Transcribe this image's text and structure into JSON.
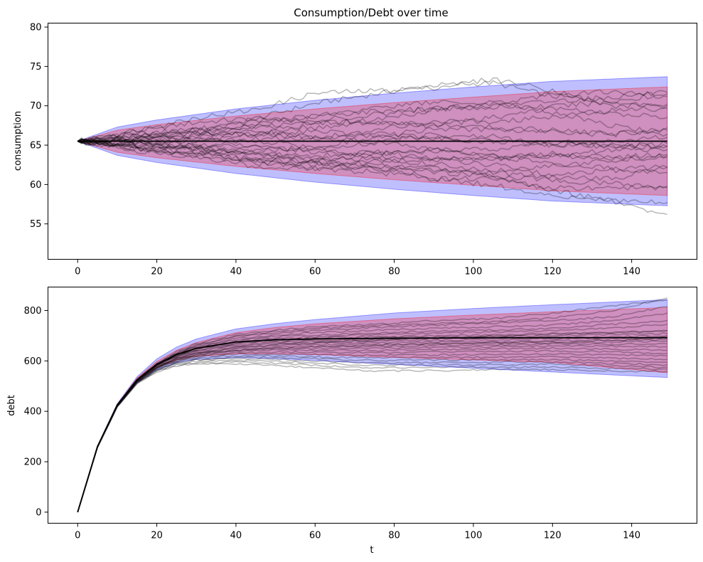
{
  "chart_data": [
    {
      "type": "line",
      "title": "Consumption/Debt over time",
      "xlabel": "",
      "ylabel": "consumption",
      "xlim": [
        -7.5,
        156.5
      ],
      "ylim": [
        50.5,
        80.5
      ],
      "xticks": [
        0,
        20,
        40,
        60,
        80,
        100,
        120,
        140
      ],
      "xtick_labels": [
        "0",
        "20",
        "40",
        "60",
        "80",
        "100",
        "120",
        "140"
      ],
      "yticks": [
        55,
        60,
        65,
        70,
        75,
        80
      ],
      "ytick_labels": [
        "55",
        "60",
        "65",
        "70",
        "75",
        "80"
      ],
      "grid": false,
      "bands": [
        {
          "kind": "population",
          "color": "#0000ff",
          "opacity": 0.25,
          "x": [
            0,
            10,
            20,
            40,
            60,
            80,
            100,
            120,
            149
          ],
          "lower": [
            65.5,
            63.7,
            62.8,
            61.4,
            60.3,
            59.4,
            58.6,
            57.9,
            57.3
          ],
          "upper": [
            65.5,
            67.3,
            68.2,
            69.6,
            70.7,
            71.6,
            72.4,
            73.1,
            73.7
          ]
        },
        {
          "kind": "mid",
          "color": "#ff0000",
          "opacity": 0.25,
          "x": [
            0,
            10,
            20,
            40,
            60,
            80,
            100,
            120,
            149
          ],
          "lower": [
            65.5,
            64.1,
            63.4,
            62.3,
            61.4,
            60.6,
            59.9,
            59.2,
            58.6
          ],
          "upper": [
            65.5,
            66.9,
            67.6,
            68.7,
            69.6,
            70.4,
            71.1,
            71.8,
            72.4
          ]
        }
      ],
      "mean_line": {
        "x": [
          0,
          149
        ],
        "y": [
          65.5,
          65.5
        ],
        "color": "#000000"
      },
      "sample_paths": {
        "count": 25,
        "color": "#000000",
        "opacity": 0.28,
        "x": [
          0,
          15,
          30,
          45,
          60,
          75,
          90,
          105,
          120,
          135,
          149
        ],
        "paths": [
          [
            65.5,
            66.8,
            67.9,
            68.4,
            70.3,
            71.5,
            72.6,
            72.9,
            71.2,
            70.6,
            71.5
          ],
          [
            65.5,
            66.9,
            68.5,
            69.5,
            71.6,
            71.9,
            72.3,
            73.4,
            72.0,
            69.9,
            70.2
          ],
          [
            65.5,
            66.5,
            67.0,
            68.0,
            68.7,
            69.3,
            69.6,
            69.9,
            70.6,
            71.1,
            71.7
          ],
          [
            65.5,
            66.1,
            66.5,
            66.3,
            67.8,
            68.2,
            69.5,
            69.9,
            69.9,
            70.5,
            70.0
          ],
          [
            65.5,
            65.8,
            67.0,
            67.3,
            68.0,
            67.9,
            67.6,
            67.2,
            66.8,
            66.3,
            67.2
          ],
          [
            65.5,
            66.2,
            66.6,
            67.4,
            67.2,
            67.9,
            67.4,
            68.5,
            69.7,
            69.0,
            68.5
          ],
          [
            65.5,
            65.6,
            66.4,
            66.3,
            66.8,
            66.0,
            67.1,
            66.9,
            67.0,
            66.5,
            66.9
          ],
          [
            65.5,
            66.0,
            66.0,
            66.5,
            65.8,
            66.6,
            65.9,
            65.4,
            65.6,
            64.8,
            65.2
          ],
          [
            65.5,
            65.5,
            64.8,
            64.2,
            64.8,
            66.1,
            65.8,
            65.5,
            65.0,
            65.1,
            64.9
          ],
          [
            65.5,
            65.0,
            65.6,
            65.8,
            66.0,
            65.4,
            64.5,
            64.5,
            65.4,
            64.7,
            64.8
          ],
          [
            65.5,
            64.9,
            64.7,
            64.9,
            64.1,
            63.9,
            64.2,
            63.7,
            63.6,
            63.5,
            63.8
          ],
          [
            65.5,
            65.4,
            64.6,
            63.8,
            63.6,
            64.1,
            63.4,
            63.2,
            63.7,
            64.4,
            64.4
          ],
          [
            65.5,
            65.1,
            64.7,
            63.5,
            63.2,
            63.3,
            62.6,
            61.8,
            62.4,
            63.1,
            63.4
          ],
          [
            65.5,
            64.7,
            63.7,
            63.1,
            62.6,
            62.9,
            63.3,
            62.5,
            61.2,
            61.8,
            61.5
          ],
          [
            65.5,
            64.9,
            64.1,
            62.9,
            62.0,
            62.3,
            61.9,
            61.5,
            60.9,
            60.7,
            62.2
          ],
          [
            65.5,
            64.6,
            63.9,
            64.2,
            63.1,
            62.4,
            62.0,
            61.1,
            60.6,
            60.1,
            59.8
          ],
          [
            65.5,
            64.5,
            63.4,
            62.3,
            62.0,
            61.6,
            60.7,
            60.8,
            59.6,
            59.5,
            59.6
          ],
          [
            65.5,
            64.6,
            64.4,
            64.0,
            62.8,
            62.1,
            60.8,
            59.9,
            58.6,
            58.1,
            57.7
          ],
          [
            65.5,
            64.2,
            63.9,
            62.7,
            62.6,
            62.0,
            61.6,
            61.1,
            59.3,
            57.9,
            56.2
          ],
          [
            65.5,
            65.8,
            66.2,
            67.7,
            68.7,
            69.8,
            70.5,
            70.3,
            69.2,
            67.5,
            66.4
          ],
          [
            65.5,
            66.4,
            66.9,
            68.3,
            68.1,
            68.9,
            69.6,
            70.4,
            71.3,
            71.8,
            71.2
          ],
          [
            65.5,
            65.4,
            65.6,
            66.8,
            65.9,
            66.9,
            67.9,
            68.0,
            68.6,
            69.4,
            69.7
          ],
          [
            65.5,
            65.5,
            66.0,
            64.7,
            64.3,
            65.3,
            66.3,
            66.1,
            65.0,
            65.6,
            66.0
          ],
          [
            65.5,
            65.0,
            64.4,
            63.1,
            62.9,
            63.9,
            64.4,
            63.6,
            62.7,
            62.0,
            62.2
          ],
          [
            65.5,
            65.9,
            64.9,
            65.6,
            64.7,
            63.4,
            63.2,
            63.4,
            63.9,
            63.1,
            63.7
          ]
        ]
      }
    },
    {
      "type": "line",
      "title": "",
      "xlabel": "t",
      "ylabel": "debt",
      "xlim": [
        -7.5,
        156.5
      ],
      "ylim": [
        -44,
        893
      ],
      "xticks": [
        0,
        20,
        40,
        60,
        80,
        100,
        120,
        140
      ],
      "xtick_labels": [
        "0",
        "20",
        "40",
        "60",
        "80",
        "100",
        "120",
        "140"
      ],
      "yticks": [
        0,
        200,
        400,
        600,
        800
      ],
      "ytick_labels": [
        "0",
        "200",
        "400",
        "600",
        "800"
      ],
      "grid": false,
      "bands": [
        {
          "kind": "population",
          "color": "#0000ff",
          "opacity": 0.25,
          "x": [
            0,
            5,
            10,
            15,
            20,
            25,
            30,
            40,
            50,
            60,
            80,
            100,
            120,
            149
          ],
          "lower": [
            0,
            258,
            420,
            513,
            565,
            593,
            606,
            613,
            609,
            602,
            586,
            571,
            556,
            534
          ],
          "upper": [
            0,
            263,
            430,
            537,
            608,
            655,
            687,
            727,
            748,
            764,
            790,
            808,
            823,
            843
          ]
        },
        {
          "kind": "mid",
          "color": "#ff0000",
          "opacity": 0.25,
          "x": [
            0,
            5,
            10,
            15,
            20,
            25,
            30,
            40,
            50,
            60,
            80,
            100,
            120,
            149
          ],
          "lower": [
            0,
            259,
            422,
            518,
            573,
            603,
            618,
            628,
            628,
            625,
            614,
            604,
            594,
            553
          ],
          "upper": [
            0,
            262,
            428,
            532,
            598,
            642,
            673,
            712,
            733,
            747,
            767,
            782,
            795,
            812
          ]
        }
      ],
      "mean_line": {
        "x": [
          0,
          5,
          10,
          15,
          20,
          25,
          30,
          40,
          50,
          60,
          80,
          100,
          120,
          149
        ],
        "y": [
          0,
          260,
          425,
          525,
          585,
          625,
          650,
          675,
          684,
          687,
          690,
          691,
          692,
          692
        ],
        "color": "#000000"
      },
      "sample_paths": {
        "count": 25,
        "color": "#000000",
        "opacity": 0.28,
        "x": [
          0,
          5,
          10,
          15,
          20,
          25,
          30,
          40,
          50,
          60,
          75,
          90,
          105,
          120,
          135,
          149
        ],
        "paths": [
          [
            0,
            259,
            423,
            524,
            588,
            630,
            662,
            698,
            716,
            728,
            740,
            748,
            755,
            770,
            800,
            850
          ],
          [
            0,
            260,
            425,
            527,
            592,
            637,
            670,
            705,
            722,
            735,
            745,
            760,
            768,
            790,
            818,
            843
          ],
          [
            0,
            260,
            424,
            526,
            589,
            632,
            663,
            696,
            710,
            720,
            733,
            742,
            750,
            760,
            775,
            815
          ],
          [
            0,
            259,
            424,
            525,
            586,
            627,
            655,
            688,
            702,
            712,
            722,
            730,
            735,
            742,
            760,
            790
          ],
          [
            0,
            260,
            425,
            526,
            588,
            628,
            656,
            685,
            697,
            703,
            710,
            718,
            722,
            730,
            745,
            760
          ],
          [
            0,
            260,
            425,
            525,
            585,
            624,
            650,
            678,
            690,
            695,
            705,
            710,
            715,
            720,
            730,
            745
          ],
          [
            0,
            259,
            424,
            524,
            584,
            623,
            648,
            675,
            685,
            690,
            696,
            700,
            702,
            710,
            712,
            720
          ],
          [
            0,
            260,
            425,
            525,
            584,
            622,
            646,
            672,
            682,
            688,
            692,
            695,
            698,
            700,
            705,
            708
          ],
          [
            0,
            259,
            424,
            524,
            583,
            620,
            643,
            668,
            678,
            682,
            686,
            690,
            692,
            694,
            696,
            700
          ],
          [
            0,
            260,
            425,
            524,
            582,
            619,
            641,
            664,
            674,
            678,
            680,
            682,
            684,
            688,
            690,
            695
          ],
          [
            0,
            259,
            424,
            523,
            581,
            617,
            638,
            660,
            668,
            672,
            672,
            675,
            676,
            680,
            682,
            685
          ],
          [
            0,
            259,
            423,
            522,
            579,
            614,
            634,
            654,
            662,
            665,
            665,
            668,
            670,
            672,
            674,
            678
          ],
          [
            0,
            259,
            423,
            521,
            577,
            611,
            630,
            648,
            655,
            657,
            658,
            662,
            664,
            668,
            666,
            668
          ],
          [
            0,
            258,
            422,
            520,
            576,
            609,
            627,
            643,
            649,
            650,
            650,
            654,
            656,
            660,
            658,
            656
          ],
          [
            0,
            259,
            422,
            519,
            574,
            606,
            623,
            638,
            642,
            642,
            641,
            645,
            648,
            650,
            646,
            642
          ],
          [
            0,
            258,
            421,
            518,
            572,
            603,
            619,
            632,
            635,
            634,
            632,
            635,
            638,
            640,
            636,
            630
          ],
          [
            0,
            258,
            421,
            517,
            570,
            600,
            615,
            626,
            628,
            625,
            622,
            624,
            626,
            628,
            624,
            620
          ],
          [
            0,
            258,
            420,
            516,
            568,
            597,
            611,
            620,
            621,
            616,
            612,
            614,
            615,
            618,
            612,
            606
          ],
          [
            0,
            257,
            419,
            515,
            566,
            594,
            607,
            614,
            614,
            608,
            602,
            604,
            605,
            606,
            600,
            595
          ],
          [
            0,
            257,
            419,
            514,
            564,
            591,
            603,
            608,
            606,
            600,
            592,
            594,
            595,
            596,
            590,
            585
          ],
          [
            0,
            257,
            418,
            513,
            562,
            588,
            598,
            602,
            598,
            592,
            582,
            584,
            585,
            586,
            580,
            575
          ],
          [
            0,
            256,
            417,
            511,
            559,
            584,
            593,
            595,
            590,
            582,
            572,
            574,
            575,
            576,
            570,
            568
          ],
          [
            0,
            256,
            416,
            509,
            556,
            580,
            588,
            588,
            582,
            572,
            560,
            561,
            566,
            566,
            560,
            558
          ],
          [
            0,
            258,
            421,
            519,
            574,
            606,
            624,
            642,
            650,
            656,
            662,
            668,
            672,
            676,
            680,
            690
          ],
          [
            0,
            258,
            422,
            520,
            576,
            610,
            630,
            652,
            664,
            672,
            682,
            690,
            698,
            706,
            712,
            720
          ]
        ]
      }
    }
  ]
}
